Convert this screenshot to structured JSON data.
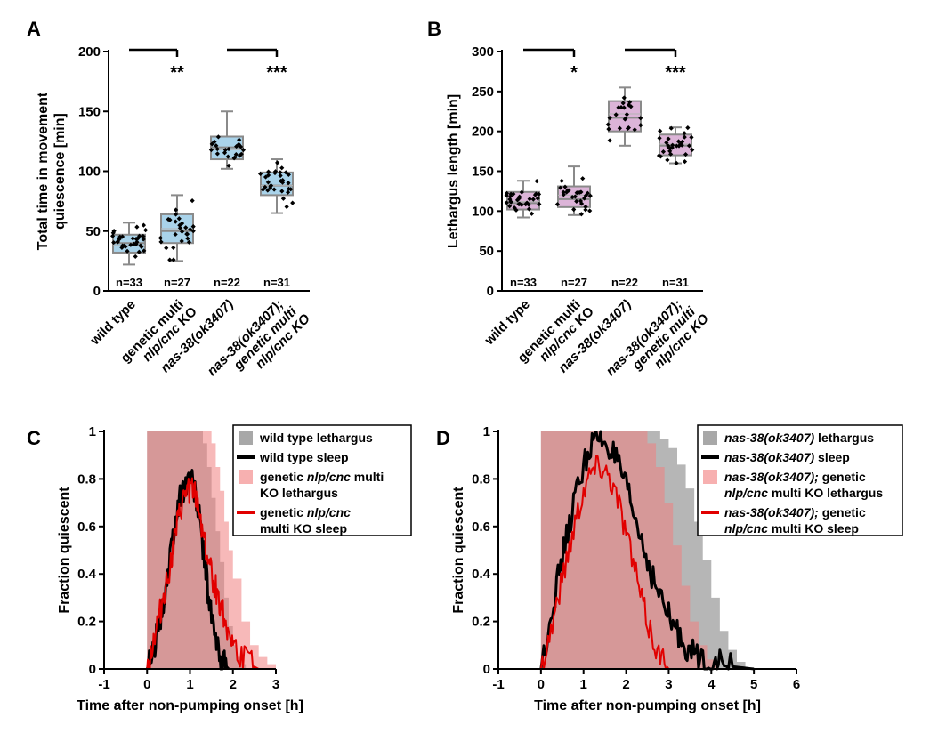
{
  "chart_data": [
    {
      "panel": "A",
      "type": "box",
      "ylabel_lines": [
        "Total time in movement",
        "quiescence [min]"
      ],
      "ylim": [
        0,
        200
      ],
      "yticks": [
        0,
        50,
        100,
        150,
        200
      ],
      "groups": [
        {
          "label_lines": [
            [
              {
                "t": "wild type",
                "i": false
              }
            ]
          ],
          "n": "n=33",
          "color": "#a9d3ea",
          "min": 22,
          "q1": 32,
          "median": 40,
          "q3": 47,
          "max": 57,
          "mean": 38
        },
        {
          "label_lines": [
            [
              {
                "t": "genetic multi",
                "i": false
              }
            ],
            [
              {
                "t": "nlp/cnc",
                "i": true
              },
              {
                "t": " KO",
                "i": false
              }
            ]
          ],
          "n": "n=27",
          "color": "#a9d3ea",
          "min": 25,
          "q1": 40,
          "median": 50,
          "q3": 64,
          "max": 80,
          "mean": 52
        },
        {
          "label_lines": [
            [
              {
                "t": "nas-38(ok3407)",
                "i": true
              }
            ]
          ],
          "n": "n=22",
          "color": "#a9d3ea",
          "min": 102,
          "q1": 110,
          "median": 120,
          "q3": 129,
          "max": 150,
          "mean": 118
        },
        {
          "label_lines": [
            [
              {
                "t": "nas-38(ok3407);",
                "i": true
              }
            ],
            [
              {
                "t": "genetic multi",
                "i": true
              }
            ],
            [
              {
                "t": "nlp/cnc KO",
                "i": true
              }
            ]
          ],
          "n": "n=31",
          "color": "#a9d3ea",
          "min": 65,
          "q1": 80,
          "median": 88,
          "q3": 99,
          "max": 110,
          "mean": 88
        }
      ],
      "comparisons": [
        {
          "from": 0,
          "to": 1,
          "label": "**"
        },
        {
          "from": 2,
          "to": 3,
          "label": "***"
        }
      ]
    },
    {
      "panel": "B",
      "type": "box",
      "ylabel_lines": [
        "Lethargus length [min]"
      ],
      "ylim": [
        0,
        300
      ],
      "yticks": [
        0,
        50,
        100,
        150,
        200,
        250,
        300
      ],
      "groups": [
        {
          "label_lines": [
            [
              {
                "t": "wild type",
                "i": false
              }
            ]
          ],
          "n": "n=33",
          "color": "#dcb4d8",
          "min": 92,
          "q1": 102,
          "median": 110,
          "q3": 124,
          "max": 138,
          "mean": 112
        },
        {
          "label_lines": [
            [
              {
                "t": "genetic multi",
                "i": false
              }
            ],
            [
              {
                "t": "nlp/cnc",
                "i": true
              },
              {
                "t": " KO",
                "i": false
              }
            ]
          ],
          "n": "n=27",
          "color": "#dcb4d8",
          "min": 95,
          "q1": 105,
          "median": 115,
          "q3": 131,
          "max": 156,
          "mean": 120
        },
        {
          "label_lines": [
            [
              {
                "t": "nas-38(ok3407)",
                "i": true
              }
            ]
          ],
          "n": "n=22",
          "color": "#dcb4d8",
          "min": 182,
          "q1": 200,
          "median": 217,
          "q3": 238,
          "max": 255,
          "mean": 222
        },
        {
          "label_lines": [
            [
              {
                "t": "nas-38(ok3407);",
                "i": true
              }
            ],
            [
              {
                "t": "genetic multi",
                "i": true
              }
            ],
            [
              {
                "t": "nlp/cnc KO",
                "i": true
              }
            ]
          ],
          "n": "n=31",
          "color": "#dcb4d8",
          "min": 160,
          "q1": 170,
          "median": 182,
          "q3": 196,
          "max": 205,
          "mean": 184
        }
      ],
      "comparisons": [
        {
          "from": 0,
          "to": 1,
          "label": "*"
        },
        {
          "from": 2,
          "to": 3,
          "label": "***"
        }
      ]
    },
    {
      "panel": "C",
      "type": "area",
      "xlabel": "Time after non-pumping onset [h]",
      "ylabel": "Fraction quiescent",
      "xlim": [
        -1,
        3
      ],
      "ylim": [
        0,
        1
      ],
      "xticks": [
        -1,
        0,
        1,
        2,
        3
      ],
      "yticks": [
        0,
        0.2,
        0.4,
        0.6,
        0.8,
        1
      ],
      "lethargus": [
        {
          "name": "wild type lethargus",
          "color": "#9e9e9e",
          "opacity": 0.75,
          "x": [
            0,
            1.2,
            1.3,
            1.4,
            1.5,
            1.6,
            1.7,
            1.8,
            1.9,
            2.0,
            2.1,
            2.2,
            2.3
          ],
          "y": [
            1,
            1,
            0.95,
            0.85,
            0.72,
            0.58,
            0.45,
            0.3,
            0.18,
            0.1,
            0.05,
            0.02,
            0
          ]
        },
        {
          "name": "genetic nlp/cnc multi KO lethargus",
          "color": "#f08080",
          "opacity": 0.55,
          "x": [
            0,
            1.4,
            1.5,
            1.6,
            1.7,
            1.8,
            1.9,
            2.0,
            2.2,
            2.4,
            2.6,
            2.8,
            3.0
          ],
          "y": [
            1,
            1,
            0.95,
            0.85,
            0.75,
            0.62,
            0.5,
            0.38,
            0.2,
            0.1,
            0.05,
            0.02,
            0
          ]
        }
      ],
      "sleep": [
        {
          "name": "wild type sleep",
          "color": "#000000",
          "stroke": 3,
          "x": [
            0,
            0.1,
            0.2,
            0.3,
            0.4,
            0.5,
            0.6,
            0.7,
            0.8,
            0.9,
            1.0,
            1.1,
            1.2,
            1.3,
            1.4,
            1.5,
            1.6,
            1.7,
            1.8,
            1.9
          ],
          "y": [
            0,
            0.05,
            0.12,
            0.2,
            0.3,
            0.42,
            0.55,
            0.66,
            0.74,
            0.78,
            0.82,
            0.76,
            0.66,
            0.52,
            0.36,
            0.22,
            0.12,
            0.05,
            0.02,
            0
          ]
        },
        {
          "name": "genetic nlp/cnc multi KO sleep",
          "color": "#e10000",
          "stroke": 2,
          "x": [
            0,
            0.1,
            0.2,
            0.3,
            0.4,
            0.5,
            0.6,
            0.7,
            0.8,
            0.9,
            1.0,
            1.1,
            1.2,
            1.3,
            1.4,
            1.5,
            1.6,
            1.7,
            1.8,
            1.9,
            2.0,
            2.2,
            2.4,
            2.6
          ],
          "y": [
            0,
            0.08,
            0.16,
            0.24,
            0.32,
            0.4,
            0.5,
            0.6,
            0.68,
            0.74,
            0.76,
            0.74,
            0.68,
            0.58,
            0.48,
            0.4,
            0.34,
            0.28,
            0.22,
            0.16,
            0.1,
            0.05,
            0.02,
            0
          ]
        }
      ],
      "legend": [
        {
          "type": "patch",
          "color": "#a8a8a8",
          "parts": [
            [
              {
                "t": "wild type lethargus",
                "i": false
              }
            ]
          ]
        },
        {
          "type": "line",
          "color": "#000000",
          "parts": [
            [
              {
                "t": "wild type sleep",
                "i": false
              }
            ]
          ]
        },
        {
          "type": "patch",
          "color": "#f7b0b0",
          "parts": [
            [
              {
                "t": "genetic ",
                "i": false
              },
              {
                "t": "nlp/cnc",
                "i": true
              },
              {
                "t": " multi",
                "i": false
              }
            ],
            [
              {
                "t": "KO lethargus",
                "i": false
              }
            ]
          ]
        },
        {
          "type": "line",
          "color": "#e10000",
          "parts": [
            [
              {
                "t": "genetic ",
                "i": false
              },
              {
                "t": "nlp/cnc",
                "i": true
              }
            ],
            [
              {
                "t": "multi KO sleep",
                "i": false
              }
            ]
          ]
        }
      ]
    },
    {
      "panel": "D",
      "type": "area",
      "xlabel": "Time after non-pumping onset [h]",
      "ylabel": "Fraction quiescent",
      "xlim": [
        -1,
        6
      ],
      "ylim": [
        0,
        1
      ],
      "xticks": [
        -1,
        0,
        1,
        2,
        3,
        4,
        5,
        6
      ],
      "yticks": [
        0,
        0.2,
        0.4,
        0.6,
        0.8,
        1
      ],
      "lethargus": [
        {
          "name": "nas-38(ok3407) lethargus",
          "color": "#9e9e9e",
          "opacity": 0.75,
          "x": [
            0,
            2.6,
            2.8,
            3.0,
            3.2,
            3.4,
            3.6,
            3.8,
            4.0,
            4.2,
            4.4,
            4.6,
            4.8
          ],
          "y": [
            1,
            1,
            0.97,
            0.93,
            0.86,
            0.76,
            0.62,
            0.46,
            0.3,
            0.16,
            0.08,
            0.03,
            0
          ]
        },
        {
          "name": "nas-38(ok3407); genetic nlp/cnc multi KO lethargus",
          "color": "#f08080",
          "opacity": 0.55,
          "x": [
            0,
            2.3,
            2.5,
            2.7,
            2.9,
            3.1,
            3.3,
            3.5,
            3.7,
            3.9,
            4.1
          ],
          "y": [
            1,
            1,
            0.95,
            0.85,
            0.7,
            0.52,
            0.35,
            0.2,
            0.1,
            0.04,
            0
          ]
        }
      ],
      "sleep": [
        {
          "name": "nas-38(ok3407) sleep",
          "color": "#000000",
          "stroke": 3,
          "x": [
            0,
            0.2,
            0.4,
            0.6,
            0.8,
            1.0,
            1.2,
            1.4,
            1.6,
            1.8,
            2.0,
            2.2,
            2.4,
            2.6,
            2.8,
            3.0,
            3.2,
            3.4,
            3.6,
            3.8,
            4.0,
            4.2,
            4.5,
            5.0
          ],
          "y": [
            0,
            0.2,
            0.38,
            0.55,
            0.72,
            0.86,
            0.95,
            0.97,
            0.94,
            0.86,
            0.76,
            0.64,
            0.52,
            0.4,
            0.3,
            0.22,
            0.15,
            0.1,
            0.06,
            0.04,
            0.03,
            0.02,
            0.01,
            0
          ]
        },
        {
          "name": "nas-38(ok3407); genetic nlp/cnc multi KO sleep",
          "color": "#e10000",
          "stroke": 2,
          "x": [
            0,
            0.2,
            0.4,
            0.6,
            0.8,
            1.0,
            1.2,
            1.4,
            1.6,
            1.8,
            2.0,
            2.2,
            2.4,
            2.6,
            2.8,
            3.0
          ],
          "y": [
            0,
            0.14,
            0.3,
            0.46,
            0.62,
            0.76,
            0.84,
            0.86,
            0.82,
            0.72,
            0.58,
            0.42,
            0.26,
            0.14,
            0.05,
            0
          ]
        }
      ],
      "legend": [
        {
          "type": "patch",
          "color": "#a8a8a8",
          "parts": [
            [
              {
                "t": "nas-38(ok3407)",
                "i": true
              },
              {
                "t": " lethargus",
                "i": false
              }
            ]
          ]
        },
        {
          "type": "line",
          "color": "#000000",
          "parts": [
            [
              {
                "t": "nas-38(ok3407)",
                "i": true
              },
              {
                "t": " sleep",
                "i": false
              }
            ]
          ]
        },
        {
          "type": "patch",
          "color": "#f7b0b0",
          "parts": [
            [
              {
                "t": "nas-38(ok3407);",
                "i": true
              },
              {
                "t": " genetic",
                "i": false
              }
            ],
            [
              {
                "t": "nlp/cnc",
                "i": true
              },
              {
                "t": " multi KO lethargus",
                "i": false
              }
            ]
          ]
        },
        {
          "type": "line",
          "color": "#e10000",
          "parts": [
            [
              {
                "t": "nas-38(ok3407);",
                "i": true
              },
              {
                "t": " genetic",
                "i": false
              }
            ],
            [
              {
                "t": "nlp/cnc",
                "i": true
              },
              {
                "t": " multi KO sleep",
                "i": false
              }
            ]
          ]
        }
      ]
    }
  ]
}
